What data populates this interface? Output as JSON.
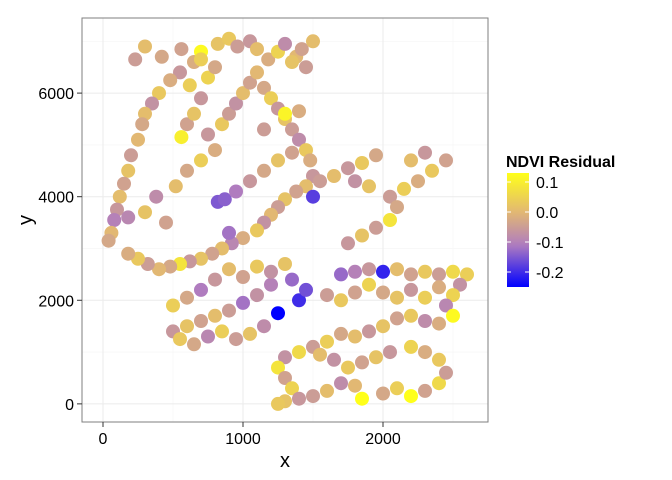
{
  "chart_data": {
    "type": "scatter",
    "title": "",
    "xlabel": "x",
    "ylabel": "y",
    "xlim": [
      -150,
      2750
    ],
    "ylim": [
      -350,
      7450
    ],
    "x_ticks": [
      0,
      1000,
      2000
    ],
    "y_ticks": [
      0,
      2000,
      4000,
      6000
    ],
    "x_tick_labels": [
      "0",
      "1000",
      "2000"
    ],
    "y_tick_labels": [
      "0",
      "2000",
      "4000",
      "6000"
    ],
    "grid": true,
    "legend": {
      "title": "NDVI Residual",
      "position": "right",
      "ticks": [
        0.1,
        0.0,
        -0.1,
        -0.2
      ],
      "tick_labels": [
        "0.1",
        "0.0",
        "-0.1",
        "-0.2"
      ],
      "range": [
        -0.25,
        0.13
      ]
    },
    "colors": {
      "high": "#FFFF1A",
      "mid": "#E2B873",
      "low_mid": "#B07CBF",
      "low": "#0000FF",
      "grid": "#EBEBEB",
      "border": "#7F7F7F"
    },
    "points": [
      [
        230,
        6650,
        -0.05
      ],
      [
        300,
        6900,
        0.01
      ],
      [
        420,
        6700,
        -0.03
      ],
      [
        560,
        6850,
        -0.04
      ],
      [
        650,
        6600,
        -0.02
      ],
      [
        700,
        6800,
        0.12
      ],
      [
        820,
        6950,
        0.02
      ],
      [
        900,
        7050,
        0.03
      ],
      [
        960,
        6900,
        -0.05
      ],
      [
        1050,
        7000,
        -0.06
      ],
      [
        1100,
        6850,
        0.01
      ],
      [
        1180,
        6650,
        -0.02
      ],
      [
        1250,
        6800,
        0.05
      ],
      [
        1300,
        6950,
        -0.08
      ],
      [
        1380,
        6700,
        0.0
      ],
      [
        1420,
        6850,
        -0.04
      ],
      [
        1500,
        7000,
        0.01
      ],
      [
        1450,
        6500,
        -0.05
      ],
      [
        1350,
        6600,
        0.02
      ],
      [
        550,
        6400,
        -0.06
      ],
      [
        620,
        6150,
        0.04
      ],
      [
        480,
        6250,
        -0.02
      ],
      [
        400,
        6000,
        0.03
      ],
      [
        350,
        5800,
        -0.07
      ],
      [
        300,
        5600,
        0.01
      ],
      [
        280,
        5400,
        -0.03
      ],
      [
        250,
        5100,
        0.0
      ],
      [
        200,
        4800,
        -0.05
      ],
      [
        180,
        4500,
        0.02
      ],
      [
        150,
        4250,
        -0.04
      ],
      [
        120,
        4000,
        0.01
      ],
      [
        100,
        3750,
        -0.06
      ],
      [
        80,
        3550,
        -0.1
      ],
      [
        60,
        3300,
        0.0
      ],
      [
        40,
        3150,
        -0.03
      ],
      [
        180,
        3600,
        -0.09
      ],
      [
        300,
        3700,
        0.02
      ],
      [
        450,
        3500,
        -0.04
      ],
      [
        380,
        4000,
        -0.08
      ],
      [
        520,
        4200,
        0.01
      ],
      [
        600,
        4500,
        -0.03
      ],
      [
        700,
        4700,
        0.04
      ],
      [
        800,
        4900,
        -0.02
      ],
      [
        750,
        5200,
        -0.06
      ],
      [
        850,
        5400,
        0.03
      ],
      [
        900,
        5600,
        -0.05
      ],
      [
        950,
        5800,
        -0.07
      ],
      [
        1000,
        6000,
        0.01
      ],
      [
        1050,
        6200,
        -0.04
      ],
      [
        1100,
        6400,
        0.0
      ],
      [
        1150,
        6100,
        -0.03
      ],
      [
        1200,
        5900,
        0.04
      ],
      [
        1250,
        5700,
        -0.06
      ],
      [
        1300,
        5500,
        0.02
      ],
      [
        1350,
        5300,
        -0.05
      ],
      [
        1400,
        5100,
        -0.08
      ],
      [
        1450,
        4900,
        0.03
      ],
      [
        1480,
        4700,
        -0.02
      ],
      [
        1500,
        4400,
        -0.06
      ],
      [
        1450,
        4200,
        0.01
      ],
      [
        1380,
        4100,
        -0.04
      ],
      [
        1300,
        3950,
        0.02
      ],
      [
        1250,
        3800,
        -0.05
      ],
      [
        1200,
        3650,
        0.0
      ],
      [
        1150,
        3500,
        -0.07
      ],
      [
        1100,
        3350,
        0.03
      ],
      [
        1000,
        3200,
        -0.02
      ],
      [
        920,
        3100,
        -0.09
      ],
      [
        850,
        3000,
        0.01
      ],
      [
        780,
        2900,
        -0.04
      ],
      [
        700,
        2800,
        0.02
      ],
      [
        620,
        2750,
        -0.06
      ],
      [
        550,
        2700,
        0.08
      ],
      [
        480,
        2650,
        -0.03
      ],
      [
        400,
        2600,
        0.0
      ],
      [
        320,
        2700,
        -0.05
      ],
      [
        250,
        2800,
        0.03
      ],
      [
        180,
        2900,
        -0.02
      ],
      [
        820,
        3900,
        -0.15
      ],
      [
        870,
        3950,
        -0.14
      ],
      [
        900,
        3300,
        -0.12
      ],
      [
        1500,
        4000,
        -0.18
      ],
      [
        950,
        4100,
        -0.11
      ],
      [
        1050,
        4300,
        -0.06
      ],
      [
        1150,
        4500,
        -0.03
      ],
      [
        1250,
        4700,
        0.02
      ],
      [
        1350,
        4850,
        -0.04
      ],
      [
        1550,
        4300,
        -0.05
      ],
      [
        1650,
        4400,
        0.01
      ],
      [
        1750,
        4550,
        -0.06
      ],
      [
        1850,
        4650,
        0.03
      ],
      [
        1950,
        4800,
        -0.03
      ],
      [
        1800,
        4300,
        -0.07
      ],
      [
        1900,
        4200,
        0.02
      ],
      [
        2050,
        4000,
        -0.05
      ],
      [
        2150,
        4150,
        0.04
      ],
      [
        2250,
        4300,
        -0.02
      ],
      [
        2350,
        4500,
        0.03
      ],
      [
        2450,
        4700,
        -0.04
      ],
      [
        2300,
        4850,
        -0.06
      ],
      [
        2200,
        4700,
        0.01
      ],
      [
        2100,
        3800,
        -0.03
      ],
      [
        2050,
        3550,
        0.08
      ],
      [
        1950,
        3400,
        -0.05
      ],
      [
        1850,
        3250,
        0.02
      ],
      [
        1750,
        3100,
        -0.06
      ],
      [
        1700,
        2500,
        -0.13
      ],
      [
        1800,
        2550,
        -0.1
      ],
      [
        1900,
        2600,
        -0.06
      ],
      [
        2000,
        2550,
        -0.21
      ],
      [
        2100,
        2600,
        0.01
      ],
      [
        2200,
        2500,
        -0.04
      ],
      [
        2300,
        2550,
        0.03
      ],
      [
        2400,
        2500,
        -0.05
      ],
      [
        2500,
        2550,
        0.06
      ],
      [
        2600,
        2500,
        0.04
      ],
      [
        2550,
        2300,
        -0.07
      ],
      [
        2500,
        2100,
        0.05
      ],
      [
        2450,
        1900,
        -0.09
      ],
      [
        2500,
        1700,
        0.12
      ],
      [
        2400,
        1550,
        -0.02
      ],
      [
        2300,
        1600,
        -0.08
      ],
      [
        2200,
        1700,
        0.03
      ],
      [
        2100,
        1650,
        -0.04
      ],
      [
        2000,
        1500,
        0.02
      ],
      [
        1900,
        1400,
        -0.06
      ],
      [
        1800,
        1300,
        0.01
      ],
      [
        1700,
        1350,
        -0.03
      ],
      [
        1600,
        1200,
        0.04
      ],
      [
        1500,
        1100,
        -0.05
      ],
      [
        1400,
        1000,
        0.06
      ],
      [
        1300,
        900,
        -0.07
      ],
      [
        1250,
        700,
        0.08
      ],
      [
        1300,
        500,
        -0.04
      ],
      [
        1350,
        300,
        0.05
      ],
      [
        1400,
        100,
        -0.06
      ],
      [
        1300,
        50,
        0.02
      ],
      [
        1250,
        0,
        0.03
      ],
      [
        1500,
        150,
        -0.05
      ],
      [
        1600,
        250,
        0.01
      ],
      [
        1700,
        400,
        -0.08
      ],
      [
        1800,
        350,
        0.0
      ],
      [
        1850,
        100,
        0.13
      ],
      [
        2000,
        200,
        -0.03
      ],
      [
        2100,
        300,
        0.04
      ],
      [
        2200,
        150,
        0.13
      ],
      [
        2300,
        250,
        -0.04
      ],
      [
        2400,
        400,
        0.06
      ],
      [
        2450,
        600,
        -0.05
      ],
      [
        2400,
        850,
        0.03
      ],
      [
        2300,
        1000,
        -0.02
      ],
      [
        2200,
        1100,
        0.05
      ],
      [
        2050,
        1000,
        -0.06
      ],
      [
        1950,
        900,
        0.02
      ],
      [
        1850,
        800,
        -0.04
      ],
      [
        1750,
        700,
        0.03
      ],
      [
        1650,
        850,
        -0.07
      ],
      [
        1550,
        950,
        0.01
      ],
      [
        1250,
        1750,
        -0.25
      ],
      [
        1400,
        2000,
        -0.2
      ],
      [
        1450,
        2200,
        -0.16
      ],
      [
        1350,
        2400,
        -0.13
      ],
      [
        1200,
        2300,
        -0.1
      ],
      [
        1100,
        2100,
        -0.07
      ],
      [
        1000,
        1950,
        -0.12
      ],
      [
        900,
        1800,
        -0.05
      ],
      [
        800,
        1700,
        0.01
      ],
      [
        700,
        1600,
        -0.04
      ],
      [
        600,
        1500,
        0.02
      ],
      [
        500,
        1400,
        -0.06
      ],
      [
        550,
        1250,
        0.03
      ],
      [
        650,
        1150,
        -0.03
      ],
      [
        750,
        1300,
        -0.09
      ],
      [
        850,
        1400,
        0.04
      ],
      [
        950,
        1250,
        -0.05
      ],
      [
        1050,
        1350,
        0.02
      ],
      [
        1150,
        1500,
        -0.08
      ],
      [
        700,
        2200,
        -0.11
      ],
      [
        800,
        2400,
        -0.06
      ],
      [
        900,
        2600,
        0.01
      ],
      [
        1000,
        2450,
        -0.04
      ],
      [
        1100,
        2650,
        0.03
      ],
      [
        1200,
        2550,
        -0.07
      ],
      [
        1300,
        2700,
        0.02
      ],
      [
        600,
        2050,
        -0.03
      ],
      [
        500,
        1900,
        0.04
      ],
      [
        1600,
        2100,
        -0.05
      ],
      [
        1700,
        2000,
        0.03
      ],
      [
        1800,
        2150,
        -0.04
      ],
      [
        1900,
        2300,
        0.05
      ],
      [
        2000,
        2150,
        -0.03
      ],
      [
        2100,
        2050,
        0.02
      ],
      [
        2200,
        2200,
        -0.06
      ],
      [
        2300,
        2050,
        0.04
      ],
      [
        2400,
        2250,
        -0.02
      ],
      [
        560,
        5150,
        0.1
      ],
      [
        600,
        5400,
        -0.04
      ],
      [
        650,
        5600,
        0.02
      ],
      [
        700,
        5900,
        -0.06
      ],
      [
        750,
        6300,
        0.05
      ],
      [
        800,
        6500,
        -0.03
      ],
      [
        700,
        6650,
        0.04
      ],
      [
        1150,
        5300,
        -0.05
      ],
      [
        1300,
        5600,
        0.11
      ],
      [
        1400,
        5650,
        -0.02
      ]
    ]
  }
}
